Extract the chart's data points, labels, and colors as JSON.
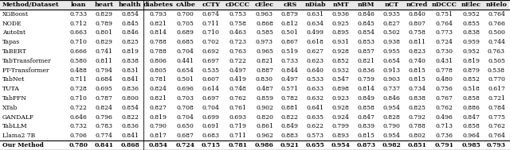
{
  "columns": [
    "Method/Dataset",
    "loan",
    "heart",
    "health",
    "diabetes",
    "cAlbe",
    "cCTY",
    "cDCCC",
    "cElec",
    "cRS",
    "nDiab",
    "nMT",
    "nBM",
    "nCT",
    "nCred",
    "nDCCC",
    "nElec",
    "nHelo"
  ],
  "rows": [
    [
      "XGBoost",
      "0.733",
      "0.829",
      "0.854",
      "0.793",
      "0.700",
      "0.674",
      "0.753",
      "0.963",
      "0.879",
      "0.631",
      "0.936",
      "0.846",
      "0.935",
      "0.840",
      "0.751",
      "0.952",
      "0.764"
    ],
    [
      "NODE",
      "0.712",
      "0.789",
      "0.845",
      "0.821",
      "0.705",
      "0.711",
      "0.758",
      "0.868",
      "0.812",
      "0.634",
      "0.925",
      "0.845",
      "0.827",
      "0.807",
      "0.764",
      "0.855",
      "0.766"
    ],
    [
      "AutoInt",
      "0.663",
      "0.801",
      "0.846",
      "0.814",
      "0.689",
      "0.710",
      "0.463",
      "0.585",
      "0.501",
      "0.499",
      "0.895",
      "0.854",
      "0.502",
      "0.758",
      "0.773",
      "0.838",
      "0.500"
    ],
    [
      "Tapas",
      "0.710",
      "0.829",
      "0.825",
      "0.788",
      "0.685",
      "0.702",
      "0.723",
      "0.973",
      "0.867",
      "0.618",
      "0.931",
      "0.853",
      "0.938",
      "0.811",
      "0.724",
      "0.959",
      "0.744"
    ],
    [
      "TaBERT",
      "0.666",
      "0.741",
      "0.819",
      "0.788",
      "0.704",
      "0.692",
      "0.763",
      "0.965",
      "0.519",
      "0.627",
      "0.928",
      "0.857",
      "0.955",
      "0.823",
      "0.730",
      "0.952",
      "0.763"
    ],
    [
      "TabTransformer",
      "0.580",
      "0.811",
      "0.838",
      "0.806",
      "0.441",
      "0.697",
      "0.722",
      "0.821",
      "0.733",
      "0.623",
      "0.852",
      "0.821",
      "0.654",
      "0.740",
      "0.431",
      "0.819",
      "0.505"
    ],
    [
      "FT-Transformer",
      "0.488",
      "0.794",
      "0.831",
      "0.805",
      "0.654",
      "0.535",
      "0.497",
      "0.887",
      "0.844",
      "0.640",
      "0.932",
      "0.836",
      "0.913",
      "0.815",
      "0.778",
      "0.879",
      "0.538"
    ],
    [
      "TabNet",
      "0.711",
      "0.684",
      "0.841",
      "0.781",
      "0.501",
      "0.607",
      "0.419",
      "0.830",
      "0.497",
      "0.533",
      "0.547",
      "0.759",
      "0.903",
      "0.815",
      "0.480",
      "0.852",
      "0.770"
    ],
    [
      "TUTA",
      "0.728",
      "0.695",
      "0.836",
      "0.824",
      "0.696",
      "0.614",
      "0.748",
      "0.487",
      "0.571",
      "0.633",
      "0.898",
      "0.814",
      "0.737",
      "0.734",
      "0.756",
      "0.518",
      "0.617"
    ],
    [
      "TabPFN",
      "0.710",
      "0.787",
      "0.800",
      "0.821",
      "0.703",
      "0.697",
      "0.762",
      "0.859",
      "0.782",
      "0.632",
      "0.923",
      "0.849",
      "0.846",
      "0.838",
      "0.767",
      "0.858",
      "0.721"
    ],
    [
      "XTab",
      "0.722",
      "0.824",
      "0.854",
      "0.827",
      "0.708",
      "0.704",
      "0.761",
      "0.902",
      "0.881",
      "0.641",
      "0.928",
      "0.858",
      "0.954",
      "0.825",
      "0.762",
      "0.886",
      "0.784"
    ],
    [
      "GANDALF",
      "0.646",
      "0.796",
      "0.822",
      "0.819",
      "0.704",
      "0.699",
      "0.693",
      "0.820",
      "0.822",
      "0.635",
      "0.924",
      "0.847",
      "0.828",
      "0.792",
      "0.496",
      "0.847",
      "0.775"
    ],
    [
      "TabLLM",
      "0.732",
      "0.783",
      "0.836",
      "0.790",
      "0.650",
      "0.691",
      "0.719",
      "0.861",
      "0.849",
      "0.622",
      "0.799",
      "0.839",
      "0.790",
      "0.788",
      "0.713",
      "0.858",
      "0.762"
    ],
    [
      "Llama2 7B",
      "0.706",
      "0.774",
      "0.841",
      "0.817",
      "0.687",
      "0.683",
      "0.711",
      "0.962",
      "0.883",
      "0.573",
      "0.893",
      "0.815",
      "0.954",
      "0.802",
      "0.736",
      "0.964",
      "0.764"
    ]
  ],
  "our_method": [
    "Our Method",
    "0.780",
    "0.841",
    "0.868",
    "0.854",
    "0.724",
    "0.715",
    "0.781",
    "0.986",
    "0.921",
    "0.655",
    "0.954",
    "0.873",
    "0.982",
    "0.851",
    "0.791",
    "0.985",
    "0.793"
  ],
  "separator_col": 5,
  "col_widths_rel": [
    1.75,
    0.68,
    0.68,
    0.72,
    0.78,
    0.68,
    0.68,
    0.75,
    0.68,
    0.68,
    0.68,
    0.68,
    0.68,
    0.68,
    0.68,
    0.75,
    0.68,
    0.68
  ],
  "font_size": 5.5,
  "header_font_size": 5.8
}
